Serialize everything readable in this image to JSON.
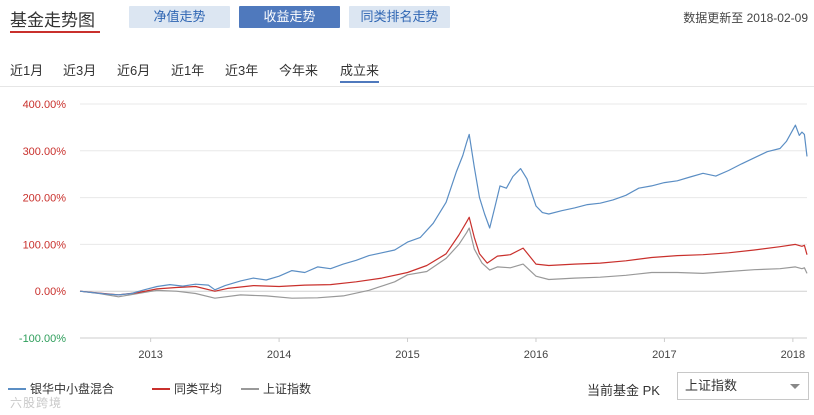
{
  "header": {
    "title": "基金走势图",
    "tabs": [
      {
        "label": "净值走势",
        "active": false
      },
      {
        "label": "收益走势",
        "active": true
      },
      {
        "label": "同类排名走势",
        "active": false
      }
    ],
    "update_text": "数据更新至 2018-02-09"
  },
  "ranges": [
    {
      "label": "近1月",
      "active": false
    },
    {
      "label": "近3月",
      "active": false
    },
    {
      "label": "近6月",
      "active": false
    },
    {
      "label": "近1年",
      "active": false
    },
    {
      "label": "近3年",
      "active": false
    },
    {
      "label": "今年来",
      "active": false
    },
    {
      "label": "成立来",
      "active": true
    }
  ],
  "pk": {
    "label": "当前基金 PK",
    "selected": "上证指数"
  },
  "watermark": "六股跨境",
  "colors": {
    "accent": "#4f79bd",
    "positive_axis": "#c9302c",
    "negative_axis": "#2e9e5b",
    "grid": "#e8e8e8"
  },
  "chart_data": {
    "type": "line",
    "x_unit": "year",
    "x_range": [
      2012.45,
      2018.11
    ],
    "ylim": [
      -100,
      400
    ],
    "yticks": [
      -100,
      0,
      100,
      200,
      300,
      400
    ],
    "ytick_labels": [
      "-100.00%",
      "0.00%",
      "100.00%",
      "200.00%",
      "300.00%",
      "400.00%"
    ],
    "xticks": [
      2013,
      2014,
      2015,
      2016,
      2017,
      2018
    ],
    "xtick_labels": [
      "2013",
      "2014",
      "2015",
      "2016",
      "2017",
      "2018"
    ],
    "grid": true,
    "legend_position": "bottom-left",
    "series": [
      {
        "name": "银华中小盘混合",
        "color": "#5b8ec4",
        "points": [
          [
            2012.45,
            0
          ],
          [
            2012.55,
            -3
          ],
          [
            2012.65,
            -6
          ],
          [
            2012.75,
            -8
          ],
          [
            2012.85,
            -5
          ],
          [
            2012.95,
            3
          ],
          [
            2013.05,
            10
          ],
          [
            2013.15,
            14
          ],
          [
            2013.25,
            11
          ],
          [
            2013.35,
            15
          ],
          [
            2013.45,
            13
          ],
          [
            2013.5,
            3
          ],
          [
            2013.58,
            12
          ],
          [
            2013.7,
            22
          ],
          [
            2013.8,
            28
          ],
          [
            2013.9,
            24
          ],
          [
            2014.0,
            32
          ],
          [
            2014.1,
            44
          ],
          [
            2014.2,
            40
          ],
          [
            2014.3,
            52
          ],
          [
            2014.4,
            48
          ],
          [
            2014.5,
            58
          ],
          [
            2014.6,
            66
          ],
          [
            2014.7,
            76
          ],
          [
            2014.8,
            82
          ],
          [
            2014.9,
            88
          ],
          [
            2015.0,
            105
          ],
          [
            2015.1,
            115
          ],
          [
            2015.2,
            145
          ],
          [
            2015.3,
            190
          ],
          [
            2015.38,
            255
          ],
          [
            2015.43,
            290
          ],
          [
            2015.46,
            318
          ],
          [
            2015.48,
            335
          ],
          [
            2015.52,
            265
          ],
          [
            2015.56,
            200
          ],
          [
            2015.6,
            165
          ],
          [
            2015.64,
            135
          ],
          [
            2015.68,
            180
          ],
          [
            2015.72,
            225
          ],
          [
            2015.77,
            220
          ],
          [
            2015.82,
            245
          ],
          [
            2015.88,
            262
          ],
          [
            2015.93,
            240
          ],
          [
            2016.0,
            182
          ],
          [
            2016.05,
            168
          ],
          [
            2016.1,
            165
          ],
          [
            2016.2,
            172
          ],
          [
            2016.3,
            178
          ],
          [
            2016.4,
            185
          ],
          [
            2016.5,
            188
          ],
          [
            2016.6,
            195
          ],
          [
            2016.7,
            205
          ],
          [
            2016.8,
            220
          ],
          [
            2016.9,
            225
          ],
          [
            2017.0,
            232
          ],
          [
            2017.1,
            236
          ],
          [
            2017.2,
            244
          ],
          [
            2017.3,
            252
          ],
          [
            2017.4,
            246
          ],
          [
            2017.5,
            258
          ],
          [
            2017.6,
            272
          ],
          [
            2017.7,
            285
          ],
          [
            2017.8,
            298
          ],
          [
            2017.9,
            305
          ],
          [
            2017.95,
            320
          ],
          [
            2018.0,
            345
          ],
          [
            2018.02,
            355
          ],
          [
            2018.05,
            333
          ],
          [
            2018.07,
            340
          ],
          [
            2018.09,
            335
          ],
          [
            2018.11,
            288
          ]
        ]
      },
      {
        "name": "同类平均",
        "color": "#c9302c",
        "points": [
          [
            2012.45,
            0
          ],
          [
            2012.6,
            -4
          ],
          [
            2012.75,
            -8
          ],
          [
            2012.9,
            -3
          ],
          [
            2013.05,
            5
          ],
          [
            2013.2,
            8
          ],
          [
            2013.35,
            10
          ],
          [
            2013.5,
            0
          ],
          [
            2013.6,
            6
          ],
          [
            2013.8,
            12
          ],
          [
            2014.0,
            10
          ],
          [
            2014.2,
            13
          ],
          [
            2014.4,
            14
          ],
          [
            2014.6,
            20
          ],
          [
            2014.8,
            28
          ],
          [
            2015.0,
            40
          ],
          [
            2015.15,
            55
          ],
          [
            2015.3,
            80
          ],
          [
            2015.4,
            120
          ],
          [
            2015.46,
            148
          ],
          [
            2015.48,
            158
          ],
          [
            2015.52,
            115
          ],
          [
            2015.56,
            80
          ],
          [
            2015.62,
            60
          ],
          [
            2015.7,
            75
          ],
          [
            2015.8,
            78
          ],
          [
            2015.9,
            92
          ],
          [
            2016.0,
            58
          ],
          [
            2016.1,
            55
          ],
          [
            2016.3,
            58
          ],
          [
            2016.5,
            60
          ],
          [
            2016.7,
            65
          ],
          [
            2016.9,
            72
          ],
          [
            2017.1,
            76
          ],
          [
            2017.3,
            78
          ],
          [
            2017.5,
            82
          ],
          [
            2017.7,
            88
          ],
          [
            2017.9,
            95
          ],
          [
            2018.02,
            100
          ],
          [
            2018.07,
            96
          ],
          [
            2018.09,
            98
          ],
          [
            2018.11,
            78
          ]
        ]
      },
      {
        "name": "上证指数",
        "color": "#999999",
        "points": [
          [
            2012.45,
            0
          ],
          [
            2012.6,
            -5
          ],
          [
            2012.75,
            -12
          ],
          [
            2012.9,
            -5
          ],
          [
            2013.05,
            2
          ],
          [
            2013.2,
            0
          ],
          [
            2013.35,
            -5
          ],
          [
            2013.5,
            -15
          ],
          [
            2013.7,
            -8
          ],
          [
            2013.9,
            -10
          ],
          [
            2014.1,
            -15
          ],
          [
            2014.3,
            -14
          ],
          [
            2014.5,
            -10
          ],
          [
            2014.7,
            2
          ],
          [
            2014.9,
            20
          ],
          [
            2015.0,
            35
          ],
          [
            2015.15,
            42
          ],
          [
            2015.3,
            70
          ],
          [
            2015.4,
            100
          ],
          [
            2015.46,
            125
          ],
          [
            2015.48,
            135
          ],
          [
            2015.52,
            90
          ],
          [
            2015.58,
            60
          ],
          [
            2015.64,
            45
          ],
          [
            2015.7,
            52
          ],
          [
            2015.8,
            50
          ],
          [
            2015.9,
            58
          ],
          [
            2016.0,
            32
          ],
          [
            2016.1,
            25
          ],
          [
            2016.3,
            28
          ],
          [
            2016.5,
            30
          ],
          [
            2016.7,
            34
          ],
          [
            2016.9,
            40
          ],
          [
            2017.1,
            40
          ],
          [
            2017.3,
            38
          ],
          [
            2017.5,
            42
          ],
          [
            2017.7,
            46
          ],
          [
            2017.9,
            48
          ],
          [
            2018.02,
            52
          ],
          [
            2018.07,
            48
          ],
          [
            2018.09,
            50
          ],
          [
            2018.11,
            38
          ]
        ]
      }
    ]
  }
}
